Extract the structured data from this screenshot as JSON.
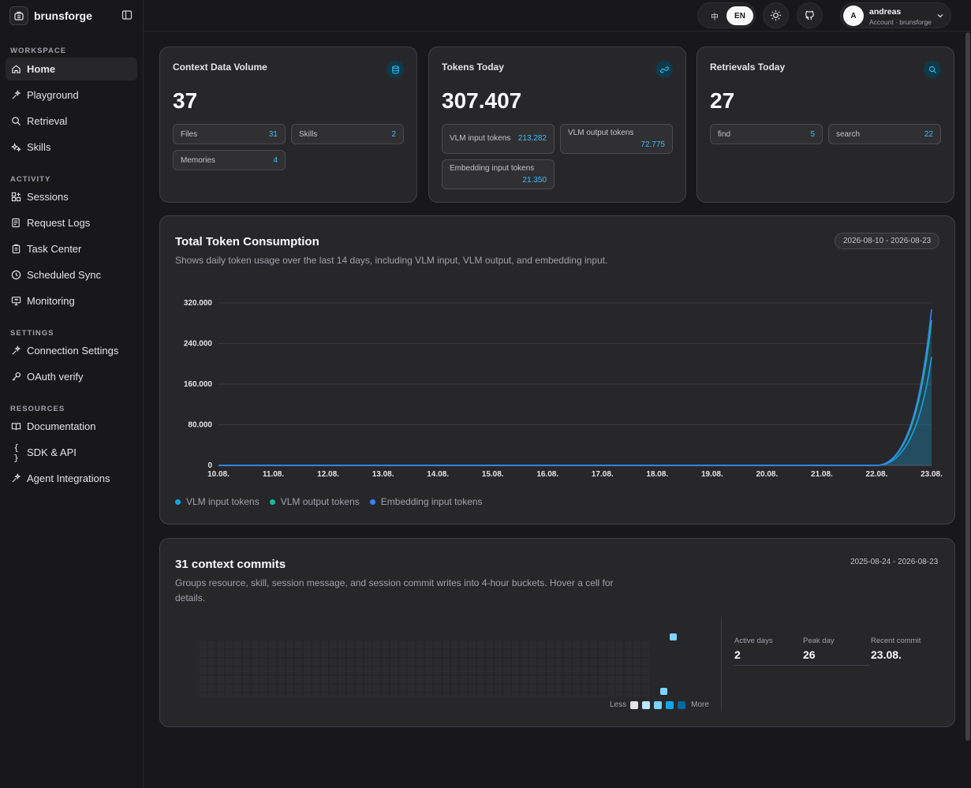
{
  "brand": {
    "name": "brunsforge"
  },
  "sidebar": {
    "sections": [
      {
        "label": "WORKSPACE"
      },
      {
        "label": "ACTIVITY"
      },
      {
        "label": "SETTINGS"
      },
      {
        "label": "RESOURCES"
      }
    ],
    "items": [
      {
        "label": "Home",
        "icon": "home-icon"
      },
      {
        "label": "Playground",
        "icon": "sparkle-icon"
      },
      {
        "label": "Retrieval",
        "icon": "search-icon"
      },
      {
        "label": "Skills",
        "icon": "sparkles-icon"
      },
      {
        "label": "Sessions",
        "icon": "grid-plus-icon"
      },
      {
        "label": "Request Logs",
        "icon": "log-icon"
      },
      {
        "label": "Task Center",
        "icon": "clipboard-icon"
      },
      {
        "label": "Scheduled Sync",
        "icon": "clock-icon"
      },
      {
        "label": "Monitoring",
        "icon": "monitor-icon"
      },
      {
        "label": "Connection Settings",
        "icon": "sparkle-icon"
      },
      {
        "label": "OAuth verify",
        "icon": "key-icon"
      },
      {
        "label": "Documentation",
        "icon": "book-icon"
      },
      {
        "label": "SDK & API",
        "icon": "braces-icon",
        "glyph": "{ }"
      },
      {
        "label": "Agent Integrations",
        "icon": "sparkle-icon"
      }
    ]
  },
  "topbar": {
    "lang_zh": "中",
    "lang_en": "EN",
    "user": {
      "initial": "A",
      "name": "andreas",
      "subtitle": "Account · brunsforge"
    }
  },
  "stats": {
    "context": {
      "title": "Context Data Volume",
      "value": "37",
      "chips": [
        {
          "label": "Files",
          "value": "31"
        },
        {
          "label": "Skills",
          "value": "2"
        },
        {
          "label": "Memories",
          "value": "4"
        }
      ]
    },
    "tokens": {
      "title": "Tokens Today",
      "value": "307.407",
      "chips": [
        {
          "label": "VLM input tokens",
          "value": "213.282"
        },
        {
          "label": "VLM output tokens",
          "value": "72.775"
        },
        {
          "label": "Embedding input tokens",
          "value": "21.350"
        }
      ]
    },
    "retrievals": {
      "title": "Retrievals Today",
      "value": "27",
      "chips": [
        {
          "label": "find",
          "value": "5"
        },
        {
          "label": "search",
          "value": "22"
        }
      ]
    }
  },
  "consumption": {
    "title": "Total Token Consumption",
    "description": "Shows daily token usage over the last 14 days, including VLM input, VLM output, and embedding input.",
    "date_range": "2026-08-10 - 2026-08-23"
  },
  "chart_data": {
    "type": "area",
    "x": [
      "10.08.",
      "11.08.",
      "12.08.",
      "13.08.",
      "14.08.",
      "15.08.",
      "16.08.",
      "17.08.",
      "18.08.",
      "19.08.",
      "20.08.",
      "21.08.",
      "22.08.",
      "23.08."
    ],
    "y_ticks": [
      "0",
      "80.000",
      "160.000",
      "240.000",
      "320.000"
    ],
    "ylim": [
      0,
      320000
    ],
    "stacked": true,
    "grid": true,
    "legend_position": "bottom-left",
    "series": [
      {
        "name": "VLM input tokens",
        "color": "#0ea5e9",
        "values": [
          0,
          0,
          0,
          0,
          0,
          0,
          0,
          0,
          0,
          0,
          0,
          0,
          0,
          213282
        ]
      },
      {
        "name": "VLM output tokens",
        "color": "#14b8a6",
        "values": [
          0,
          0,
          0,
          0,
          0,
          0,
          0,
          0,
          0,
          0,
          0,
          0,
          0,
          72775
        ]
      },
      {
        "name": "Embedding input tokens",
        "color": "#3b82f6",
        "values": [
          0,
          0,
          0,
          0,
          0,
          0,
          0,
          0,
          0,
          0,
          0,
          0,
          0,
          21350
        ]
      }
    ]
  },
  "commits": {
    "title": "31 context commits",
    "description": "Groups resource, skill, session message, and session commit writes into 4-hour buckets. Hover a cell for details.",
    "date_range": "2025-08-24 - 2026-08-23",
    "legend_less": "Less",
    "legend_more": "More",
    "legend_colors": [
      "#e4e4e7",
      "#bae6fd",
      "#7dd3fc",
      "#0ea5e9",
      "#0369a1"
    ],
    "metrics": [
      {
        "label": "Active days",
        "value": "2"
      },
      {
        "label": "Peak day",
        "value": "26"
      },
      {
        "label": "Recent commit",
        "value": "23.08."
      }
    ]
  }
}
